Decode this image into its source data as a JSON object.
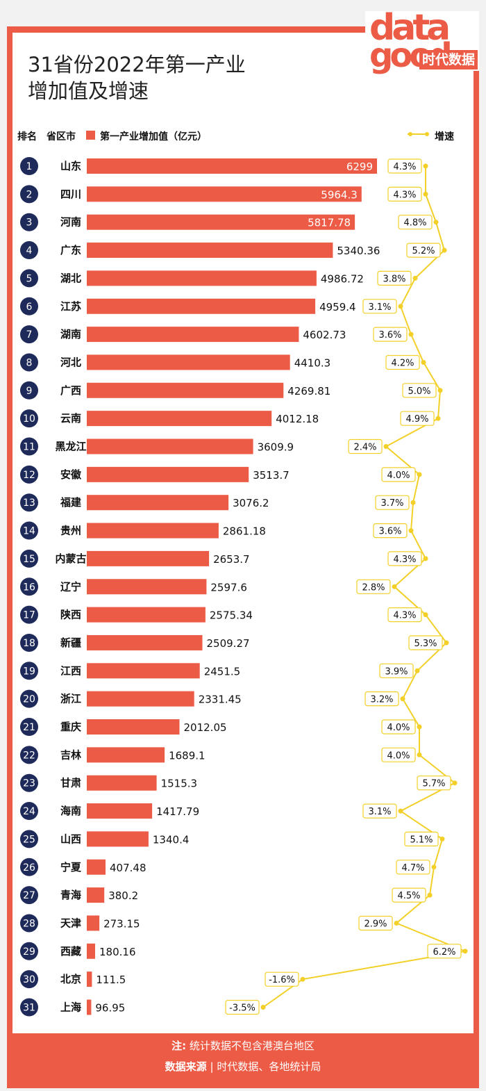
{
  "title_line1": "31省份2022年第一产业",
  "title_line2": "增加值及增速",
  "brand": {
    "logo_word_1": "data",
    "logo_word_2": "good",
    "logo_cn": "时代数据",
    "accent": "#ec5b45",
    "growth_color": "#f2d028"
  },
  "headers": {
    "rank": "排名",
    "province": "省区市",
    "value": "第一产业增加值（亿元）",
    "growth": "增速"
  },
  "footer": {
    "note_label": "注:",
    "note_text": "统计数据不包含港澳台地区",
    "source_label": "数据来源",
    "separator": "|",
    "source_text": "时代数据、各地统计局"
  },
  "chart_data": {
    "type": "bar",
    "orientation": "horizontal",
    "title": "31省份2022年第一产业增加值及增速",
    "value_unit": "亿元",
    "growth_unit": "%",
    "categories": [
      "山东",
      "四川",
      "河南",
      "广东",
      "湖北",
      "江苏",
      "湖南",
      "河北",
      "广西",
      "云南",
      "黑龙江",
      "安徽",
      "福建",
      "贵州",
      "内蒙古",
      "辽宁",
      "陕西",
      "新疆",
      "江西",
      "浙江",
      "重庆",
      "吉林",
      "甘肃",
      "海南",
      "山西",
      "宁夏",
      "青海",
      "天津",
      "西藏",
      "北京",
      "上海"
    ],
    "ranks": [
      "1",
      "2",
      "3",
      "4",
      "5",
      "6",
      "7",
      "8",
      "9",
      "10",
      "11",
      "12",
      "13",
      "14",
      "15",
      "16",
      "17",
      "18",
      "19",
      "20",
      "21",
      "22",
      "23",
      "24",
      "25",
      "26",
      "27",
      "28",
      "29",
      "30",
      "31"
    ],
    "value_labels": [
      "6299",
      "5964.3",
      "5817.78",
      "5340.36",
      "4986.72",
      "4959.4",
      "4602.73",
      "4410.3",
      "4269.81",
      "4012.18",
      "3609.9",
      "3513.7",
      "3076.2",
      "2861.18",
      "2653.7",
      "2597.6",
      "2575.34",
      "2509.27",
      "2451.5",
      "2331.45",
      "2012.05",
      "1689.1",
      "1515.3",
      "1417.79",
      "1340.4",
      "407.48",
      "380.2",
      "273.15",
      "180.16",
      "111.5",
      "96.95"
    ],
    "values": [
      6299,
      5964.3,
      5817.78,
      5340.36,
      4986.72,
      4959.4,
      4602.73,
      4410.3,
      4269.81,
      4012.18,
      3609.9,
      3513.7,
      3076.2,
      2861.18,
      2653.7,
      2597.6,
      2575.34,
      2509.27,
      2451.5,
      2331.45,
      2012.05,
      1689.1,
      1515.3,
      1417.79,
      1340.4,
      407.48,
      380.2,
      273.15,
      180.16,
      111.5,
      96.95
    ],
    "growth_labels": [
      "4.3%",
      "4.3%",
      "4.8%",
      "5.2%",
      "3.8%",
      "3.1%",
      "3.6%",
      "4.2%",
      "5.0%",
      "4.9%",
      "2.4%",
      "4.0%",
      "3.7%",
      "3.6%",
      "4.3%",
      "2.8%",
      "4.3%",
      "5.3%",
      "3.9%",
      "3.2%",
      "4.0%",
      "4.0%",
      "5.7%",
      "3.1%",
      "5.1%",
      "4.7%",
      "4.5%",
      "2.9%",
      "6.2%",
      "-1.6%",
      "-3.5%"
    ],
    "growth": [
      4.3,
      4.3,
      4.8,
      5.2,
      3.8,
      3.1,
      3.6,
      4.2,
      5.0,
      4.9,
      2.4,
      4.0,
      3.7,
      3.6,
      4.3,
      2.8,
      4.3,
      5.3,
      3.9,
      3.2,
      4.0,
      4.0,
      5.7,
      3.1,
      5.1,
      4.7,
      4.5,
      2.9,
      6.2,
      -1.6,
      -3.5
    ],
    "labels_inside_bar": [
      true,
      true,
      true
    ]
  }
}
